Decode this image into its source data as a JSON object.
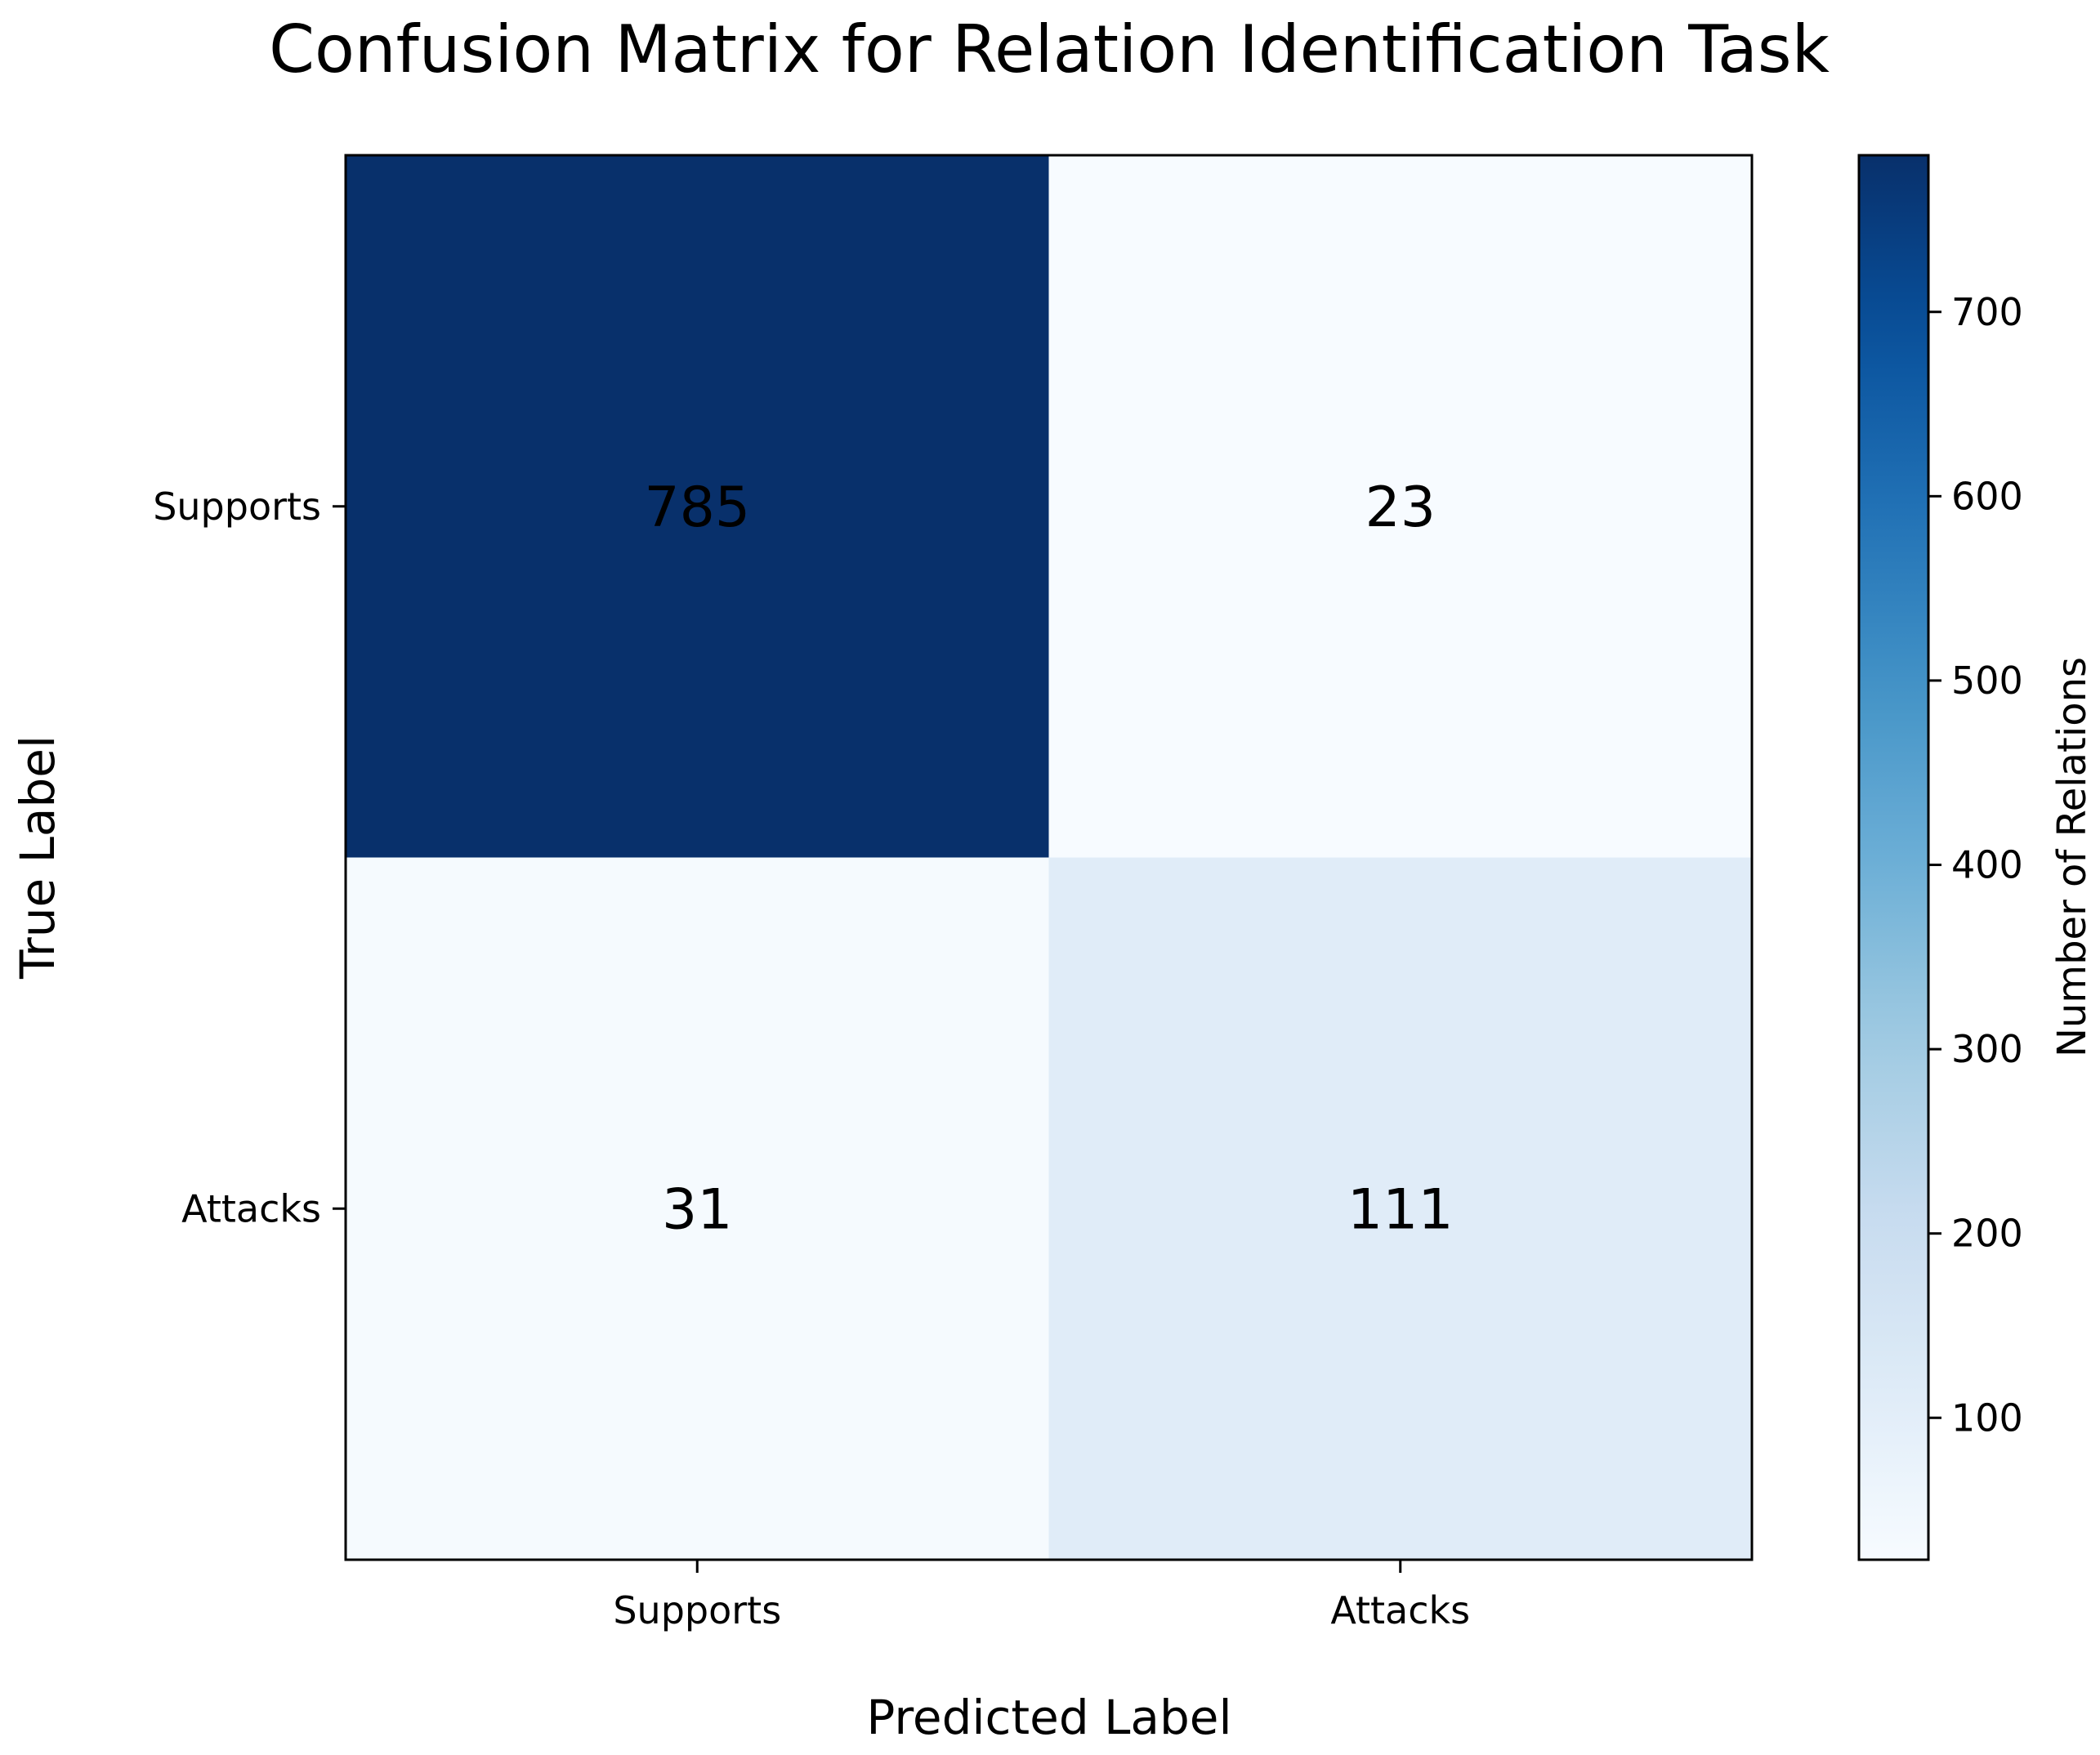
{
  "chart_data": {
    "type": "heatmap",
    "title": "Confusion Matrix for Relation Identification Task",
    "xlabel": "Predicted Label",
    "ylabel": "True Label",
    "x_categories": [
      "Supports",
      "Attacks"
    ],
    "y_categories": [
      "Supports",
      "Attacks"
    ],
    "values": [
      [
        785,
        23
      ],
      [
        31,
        111
      ]
    ],
    "colormap": "Blues",
    "colorbar": {
      "label": "Number of Relations",
      "range": [
        23,
        785
      ],
      "ticks": [
        100,
        200,
        300,
        400,
        500,
        600,
        700
      ]
    },
    "grid": false
  }
}
